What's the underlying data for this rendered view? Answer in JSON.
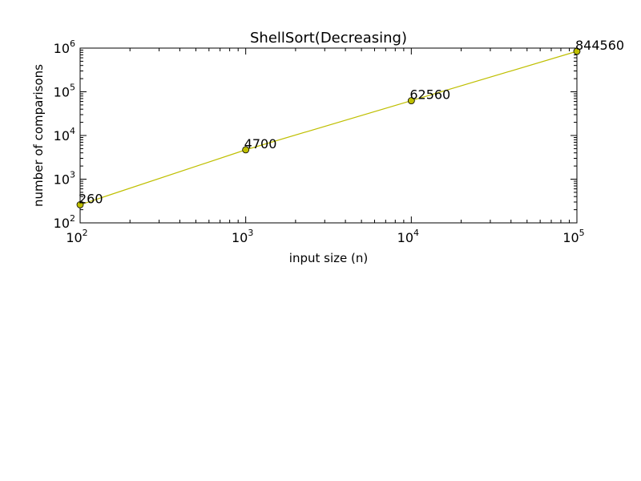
{
  "chart_data": {
    "type": "line",
    "title": "ShellSort(Decreasing)",
    "xlabel": "input size (n)",
    "ylabel": "number of comparisons",
    "xscale": "log",
    "yscale": "log",
    "xlim": [
      100,
      100000
    ],
    "ylim": [
      100,
      1000000
    ],
    "x_ticks": [
      {
        "base": "10",
        "exp": "2"
      },
      {
        "base": "10",
        "exp": "3"
      },
      {
        "base": "10",
        "exp": "4"
      },
      {
        "base": "10",
        "exp": "5"
      }
    ],
    "y_ticks": [
      {
        "base": "10",
        "exp": "2"
      },
      {
        "base": "10",
        "exp": "3"
      },
      {
        "base": "10",
        "exp": "4"
      },
      {
        "base": "10",
        "exp": "5"
      },
      {
        "base": "10",
        "exp": "6"
      }
    ],
    "grid": false,
    "series": [
      {
        "color": "#bfbf00",
        "marker": "circle",
        "points": [
          {
            "x": 100,
            "y": 260,
            "label": "260"
          },
          {
            "x": 1000,
            "y": 4700,
            "label": "4700"
          },
          {
            "x": 10000,
            "y": 62560,
            "label": "62560"
          },
          {
            "x": 100000,
            "y": 844560,
            "label": "844560"
          }
        ]
      }
    ]
  }
}
